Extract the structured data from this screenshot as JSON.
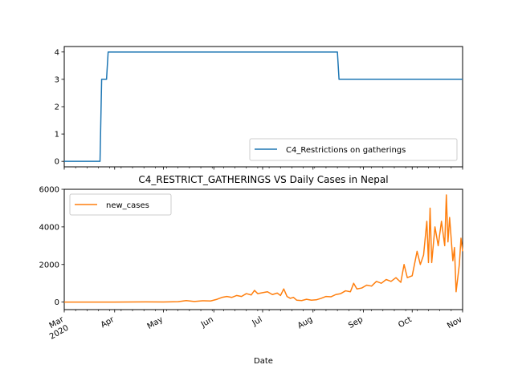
{
  "chart_data": [
    {
      "type": "line",
      "title": "",
      "xlabel": "",
      "ylabel": "",
      "ylim": [
        -0.2,
        4.2
      ],
      "y_ticks": [
        0,
        1,
        2,
        3,
        4
      ],
      "y_tick_labels": [
        "0",
        "1",
        "2",
        "3",
        "4"
      ],
      "x_range": [
        "2020-03-01",
        "2020-11-01"
      ],
      "legend": {
        "placement": "lower right"
      },
      "grid": false,
      "series": [
        {
          "name": "C4_Restrictions on gatherings",
          "color": "#1f77b4",
          "points": [
            [
              "2020-03-01",
              0
            ],
            [
              "2020-03-23",
              0
            ],
            [
              "2020-03-24",
              3
            ],
            [
              "2020-03-27",
              3
            ],
            [
              "2020-03-28",
              4
            ],
            [
              "2020-08-16",
              4
            ],
            [
              "2020-08-17",
              3
            ],
            [
              "2020-11-01",
              3
            ]
          ]
        }
      ]
    },
    {
      "type": "line",
      "title": "C4_RESTRICT_GATHERINGS VS Daily Cases in Nepal",
      "xlabel": "Date",
      "ylabel": "",
      "ylim": [
        -400,
        6000
      ],
      "y_ticks": [
        0,
        2000,
        4000,
        6000
      ],
      "y_tick_labels": [
        "0",
        "2000",
        "4000",
        "6000"
      ],
      "x_range": [
        "2020-03-01",
        "2020-11-01"
      ],
      "x_ticks": [
        "2020-03-01",
        "2020-04-01",
        "2020-05-01",
        "2020-06-01",
        "2020-07-01",
        "2020-08-01",
        "2020-09-01",
        "2020-10-01",
        "2020-11-01"
      ],
      "x_tick_labels": [
        "Mar\n2020",
        "Apr",
        "May",
        "Jun",
        "Jul",
        "Aug",
        "Sep",
        "Oct",
        "Nov"
      ],
      "legend": {
        "placement": "upper left"
      },
      "grid": false,
      "series": [
        {
          "name": "new_cases",
          "color": "#ff7f0e",
          "points": [
            [
              "2020-03-01",
              0
            ],
            [
              "2020-04-01",
              0
            ],
            [
              "2020-04-20",
              10
            ],
            [
              "2020-05-01",
              5
            ],
            [
              "2020-05-10",
              20
            ],
            [
              "2020-05-15",
              80
            ],
            [
              "2020-05-20",
              30
            ],
            [
              "2020-05-25",
              70
            ],
            [
              "2020-05-30",
              60
            ],
            [
              "2020-06-03",
              150
            ],
            [
              "2020-06-06",
              250
            ],
            [
              "2020-06-09",
              300
            ],
            [
              "2020-06-12",
              250
            ],
            [
              "2020-06-15",
              350
            ],
            [
              "2020-06-18",
              300
            ],
            [
              "2020-06-21",
              450
            ],
            [
              "2020-06-24",
              380
            ],
            [
              "2020-06-26",
              620
            ],
            [
              "2020-06-28",
              450
            ],
            [
              "2020-07-01",
              500
            ],
            [
              "2020-07-04",
              550
            ],
            [
              "2020-07-07",
              400
            ],
            [
              "2020-07-10",
              480
            ],
            [
              "2020-07-12",
              350
            ],
            [
              "2020-07-14",
              700
            ],
            [
              "2020-07-16",
              300
            ],
            [
              "2020-07-18",
              200
            ],
            [
              "2020-07-20",
              250
            ],
            [
              "2020-07-22",
              100
            ],
            [
              "2020-07-25",
              80
            ],
            [
              "2020-07-28",
              150
            ],
            [
              "2020-07-31",
              100
            ],
            [
              "2020-08-03",
              120
            ],
            [
              "2020-08-06",
              200
            ],
            [
              "2020-08-09",
              300
            ],
            [
              "2020-08-12",
              280
            ],
            [
              "2020-08-15",
              400
            ],
            [
              "2020-08-18",
              450
            ],
            [
              "2020-08-21",
              600
            ],
            [
              "2020-08-24",
              550
            ],
            [
              "2020-08-26",
              1000
            ],
            [
              "2020-08-28",
              700
            ],
            [
              "2020-08-31",
              750
            ],
            [
              "2020-09-03",
              900
            ],
            [
              "2020-09-06",
              850
            ],
            [
              "2020-09-09",
              1100
            ],
            [
              "2020-09-12",
              1000
            ],
            [
              "2020-09-15",
              1200
            ],
            [
              "2020-09-18",
              1100
            ],
            [
              "2020-09-21",
              1300
            ],
            [
              "2020-09-24",
              1050
            ],
            [
              "2020-09-26",
              2000
            ],
            [
              "2020-09-28",
              1300
            ],
            [
              "2020-10-01",
              1400
            ],
            [
              "2020-10-04",
              2700
            ],
            [
              "2020-10-06",
              2000
            ],
            [
              "2020-10-08",
              2500
            ],
            [
              "2020-10-10",
              4300
            ],
            [
              "2020-10-11",
              2100
            ],
            [
              "2020-10-12",
              5000
            ],
            [
              "2020-10-13",
              2100
            ],
            [
              "2020-10-15",
              4000
            ],
            [
              "2020-10-17",
              3000
            ],
            [
              "2020-10-19",
              4300
            ],
            [
              "2020-10-21",
              3000
            ],
            [
              "2020-10-22",
              5700
            ],
            [
              "2020-10-23",
              3200
            ],
            [
              "2020-10-24",
              4500
            ],
            [
              "2020-10-26",
              2200
            ],
            [
              "2020-10-27",
              2900
            ],
            [
              "2020-10-28",
              550
            ],
            [
              "2020-10-30",
              2000
            ],
            [
              "2020-10-31",
              3400
            ],
            [
              "2020-11-01",
              2700
            ]
          ]
        }
      ]
    }
  ]
}
